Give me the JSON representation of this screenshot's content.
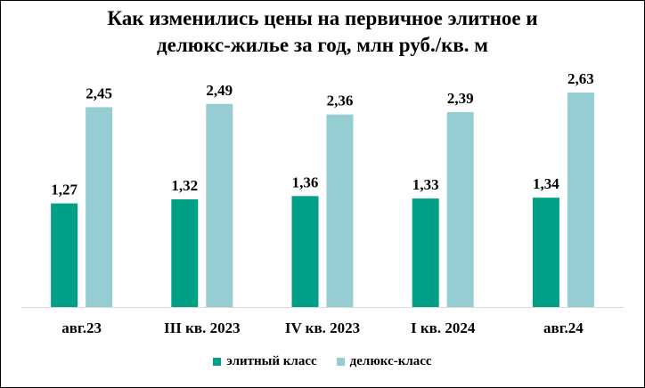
{
  "title_line1": "Как изменились цены на первичное элитное и",
  "title_line2": "делюкс-жилье за год, млн руб./кв. м",
  "chart_data": {
    "type": "bar",
    "title": "Как изменились цены на первичное элитное и делюкс-жилье за год, млн руб./кв. м",
    "categories": [
      "авг.23",
      "III кв. 2023",
      "IV кв. 2023",
      "I кв. 2024",
      "авг.24"
    ],
    "series": [
      {
        "name": "элитный класс",
        "color": "#00A087",
        "values": [
          1.27,
          1.32,
          1.36,
          1.33,
          1.34
        ],
        "labels": [
          "1,27",
          "1,32",
          "1,36",
          "1,33",
          "1,34"
        ]
      },
      {
        "name": "делюкс-класс",
        "color": "#96CDD2",
        "values": [
          2.45,
          2.49,
          2.36,
          2.39,
          2.63
        ],
        "labels": [
          "2,45",
          "2,49",
          "2,36",
          "2,39",
          "2,63"
        ]
      }
    ],
    "ylim": [
      0,
      3.0
    ],
    "grid": false,
    "legend_position": "bottom",
    "data_labels": true
  }
}
